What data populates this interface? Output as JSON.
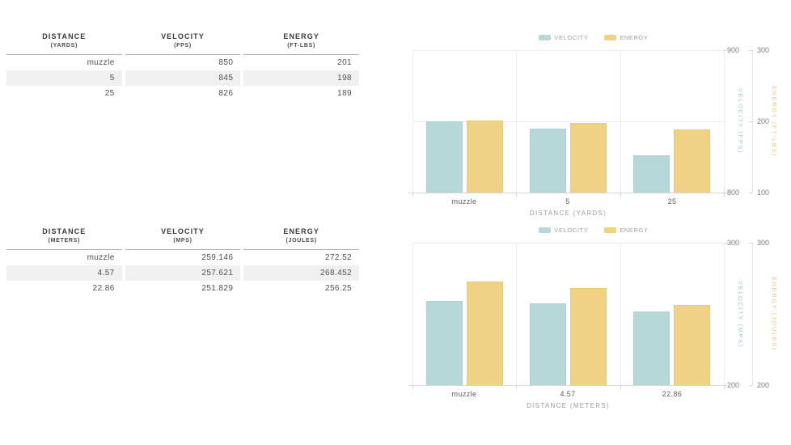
{
  "colors": {
    "velocity_bar": "#b7d8d9",
    "velocity_bar_border": "#aad0d1",
    "energy_bar": "#f0d287",
    "energy_bar_border": "#eac878",
    "velocity_axis_label": "#a3ced0",
    "energy_axis_label": "#eec878",
    "row_stripe": "#f0f0f0",
    "gridline": "#ececec",
    "baseline": "#d8d8d8"
  },
  "tables": [
    {
      "name": "imperial-units-table",
      "columns": [
        {
          "title": "DISTANCE",
          "unit": "(YARDS)"
        },
        {
          "title": "VELOCITY",
          "unit": "(FPS)"
        },
        {
          "title": "ENERGY",
          "unit": "(FT-LBS)"
        }
      ],
      "rows": [
        [
          "muzzle",
          "850",
          "201"
        ],
        [
          "5",
          "845",
          "198"
        ],
        [
          "25",
          "826",
          "189"
        ]
      ]
    },
    {
      "name": "metric-units-table",
      "columns": [
        {
          "title": "DISTANCE",
          "unit": "(METERS)"
        },
        {
          "title": "VELOCITY",
          "unit": "(MPS)"
        },
        {
          "title": "ENERGY",
          "unit": "(JOULES)"
        }
      ],
      "rows": [
        [
          "muzzle",
          "259.146",
          "272.52"
        ],
        [
          "4.57",
          "257.621",
          "268.452"
        ],
        [
          "22.86",
          "251.829",
          "256.25"
        ]
      ]
    }
  ],
  "chart_data": [
    {
      "type": "bar",
      "name": "velocity-energy-chart-yards",
      "categories": [
        "muzzle",
        "5",
        "25"
      ],
      "xlabel": "DISTANCE (YARDS)",
      "legend": [
        "VELOCITY",
        "ENERGY"
      ],
      "legend_position": "top",
      "grid": "on",
      "series": [
        {
          "name": "VELOCITY",
          "values": [
            850,
            845,
            826
          ],
          "color": "#b7d8d9",
          "border": "#aad0d1",
          "axis_label": "VELOCITY (FPS)",
          "axis_label_color": "#a3ced0",
          "axis_min": 800,
          "axis_max": 900,
          "axis_ticks": [
            900,
            800
          ]
        },
        {
          "name": "ENERGY",
          "values": [
            201,
            198,
            189
          ],
          "color": "#f0d287",
          "border": "#eac878",
          "axis_label": "ENERGY (FT-LBS)",
          "axis_label_color": "#eec878",
          "axis_min": 100,
          "axis_max": 300,
          "axis_ticks": [
            300,
            200,
            100
          ]
        }
      ]
    },
    {
      "type": "bar",
      "name": "velocity-energy-chart-meters",
      "categories": [
        "muzzle",
        "4.57",
        "22.86"
      ],
      "xlabel": "DISTANCE (METERS)",
      "legend": [
        "VELOCITY",
        "ENERGY"
      ],
      "legend_position": "top",
      "grid": "on",
      "series": [
        {
          "name": "VELOCITY",
          "values": [
            259.146,
            257.621,
            251.829
          ],
          "color": "#b7d8d9",
          "border": "#aad0d1",
          "axis_label": "VELOCITY (MPS)",
          "axis_label_color": "#a3ced0",
          "axis_min": 200,
          "axis_max": 300,
          "axis_ticks": [
            300,
            200
          ]
        },
        {
          "name": "ENERGY",
          "values": [
            272.52,
            268.452,
            256.25
          ],
          "color": "#f0d287",
          "border": "#eac878",
          "axis_label": "ENERGY (JOULES)",
          "axis_label_color": "#eec878",
          "axis_min": 200,
          "axis_max": 300,
          "axis_ticks": [
            300,
            200
          ]
        }
      ]
    }
  ]
}
